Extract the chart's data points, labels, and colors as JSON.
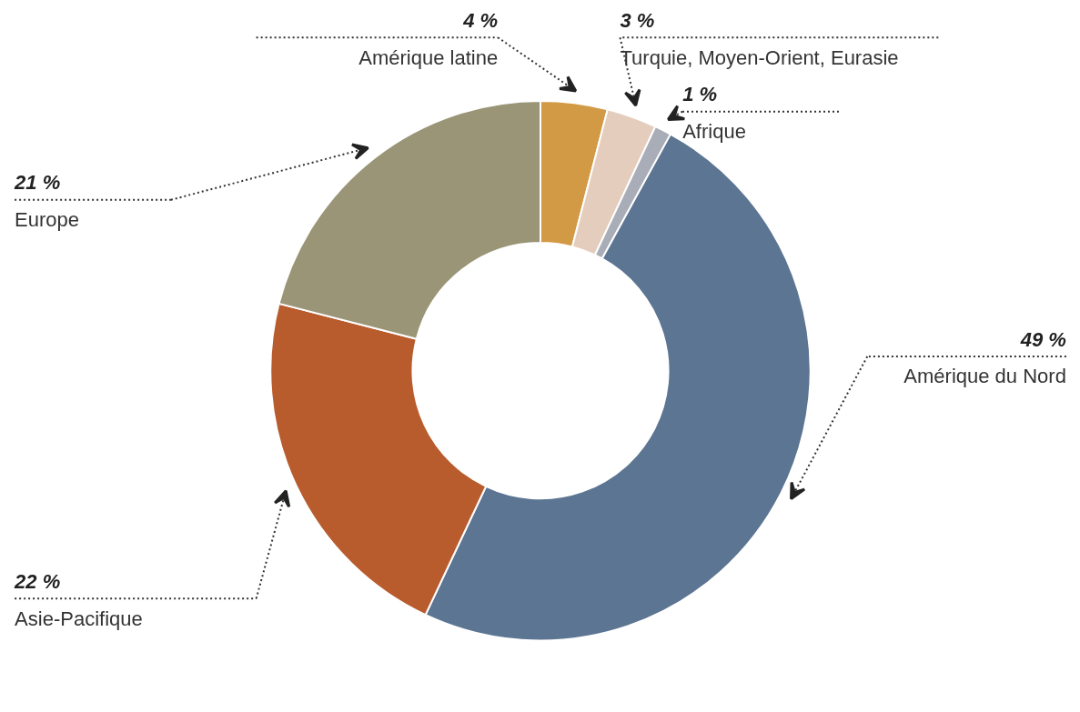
{
  "chart_data": {
    "type": "donut",
    "categories": [
      "Amérique latine",
      "Turquie, Moyen-Orient, Eurasie",
      "Afrique",
      "Amérique du Nord",
      "Asie-Pacifique",
      "Europe"
    ],
    "values": [
      4,
      3,
      1,
      49,
      22,
      21
    ],
    "value_labels": [
      "4 %",
      "3 %",
      "1 %",
      "49 %",
      "22 %",
      "21 %"
    ],
    "colors": [
      "#d39a45",
      "#e4cdbd",
      "#a9adb8",
      "#5c7592",
      "#b85c2e",
      "#9a9577"
    ]
  }
}
